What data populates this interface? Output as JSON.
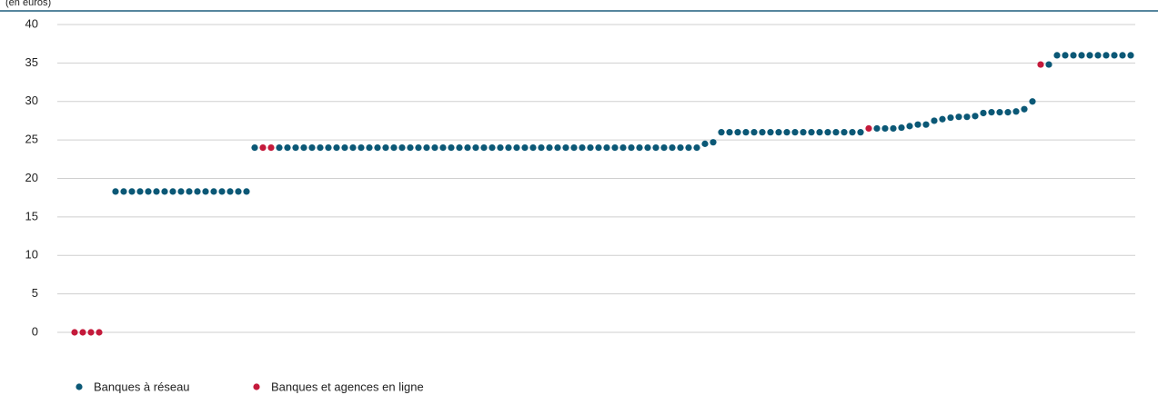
{
  "chart_data": {
    "type": "dot",
    "subtitle": "(en euros)",
    "ylim": [
      0,
      40
    ],
    "yticks": [
      0,
      5,
      10,
      15,
      20,
      25,
      30,
      35,
      40
    ],
    "grid": true,
    "series": [
      {
        "name": "Banques à réseau",
        "color": "#0b5876",
        "values": [
          null,
          null,
          null,
          null,
          null,
          18.3,
          18.3,
          18.3,
          18.3,
          18.3,
          18.3,
          18.3,
          18.3,
          18.3,
          18.3,
          18.3,
          18.3,
          18.3,
          18.3,
          18.3,
          18.3,
          18.3,
          24,
          null,
          null,
          24,
          24,
          24,
          24,
          24,
          24,
          24,
          24,
          24,
          24,
          24,
          24,
          24,
          24,
          24,
          24,
          24,
          24,
          24,
          24,
          24,
          24,
          24,
          24,
          24,
          24,
          24,
          24,
          24,
          24,
          24,
          24,
          24,
          24,
          24,
          24,
          24,
          24,
          24,
          24,
          24,
          24,
          24,
          24,
          24,
          24,
          24,
          24,
          24,
          24,
          24,
          24,
          24.5,
          24.7,
          26,
          26,
          26,
          26,
          26,
          26,
          26,
          26,
          26,
          26,
          26,
          26,
          26,
          26,
          26,
          26,
          26,
          26,
          null,
          26.5,
          26.5,
          26.5,
          26.6,
          26.8,
          27,
          27,
          27.5,
          27.7,
          27.9,
          28,
          28,
          28.1,
          28.5,
          28.6,
          28.6,
          28.6,
          28.7,
          29,
          30,
          null,
          34.8,
          36,
          36,
          36,
          36,
          36,
          36,
          36,
          36,
          36,
          36
        ]
      },
      {
        "name": "Banques et agences en ligne",
        "color": "#c41a3b",
        "values": [
          0,
          0,
          0,
          0,
          null,
          null,
          null,
          null,
          null,
          null,
          null,
          null,
          null,
          null,
          null,
          null,
          null,
          null,
          null,
          null,
          null,
          null,
          null,
          24,
          24,
          null,
          null,
          null,
          null,
          null,
          null,
          null,
          null,
          null,
          null,
          null,
          null,
          null,
          null,
          null,
          null,
          null,
          null,
          null,
          null,
          null,
          null,
          null,
          null,
          null,
          null,
          null,
          null,
          null,
          null,
          null,
          null,
          null,
          null,
          null,
          null,
          null,
          null,
          null,
          null,
          null,
          null,
          null,
          null,
          null,
          null,
          null,
          null,
          null,
          null,
          null,
          null,
          null,
          null,
          null,
          null,
          null,
          null,
          null,
          null,
          null,
          null,
          null,
          null,
          null,
          null,
          null,
          null,
          null,
          null,
          null,
          null,
          26.5,
          null,
          null,
          null,
          null,
          null,
          null,
          null,
          null,
          null,
          null,
          null,
          null,
          null,
          null,
          null,
          null,
          null,
          null,
          null,
          null,
          34.8,
          null,
          null,
          null,
          null,
          null,
          null,
          null,
          null,
          null,
          null,
          null
        ]
      }
    ]
  }
}
